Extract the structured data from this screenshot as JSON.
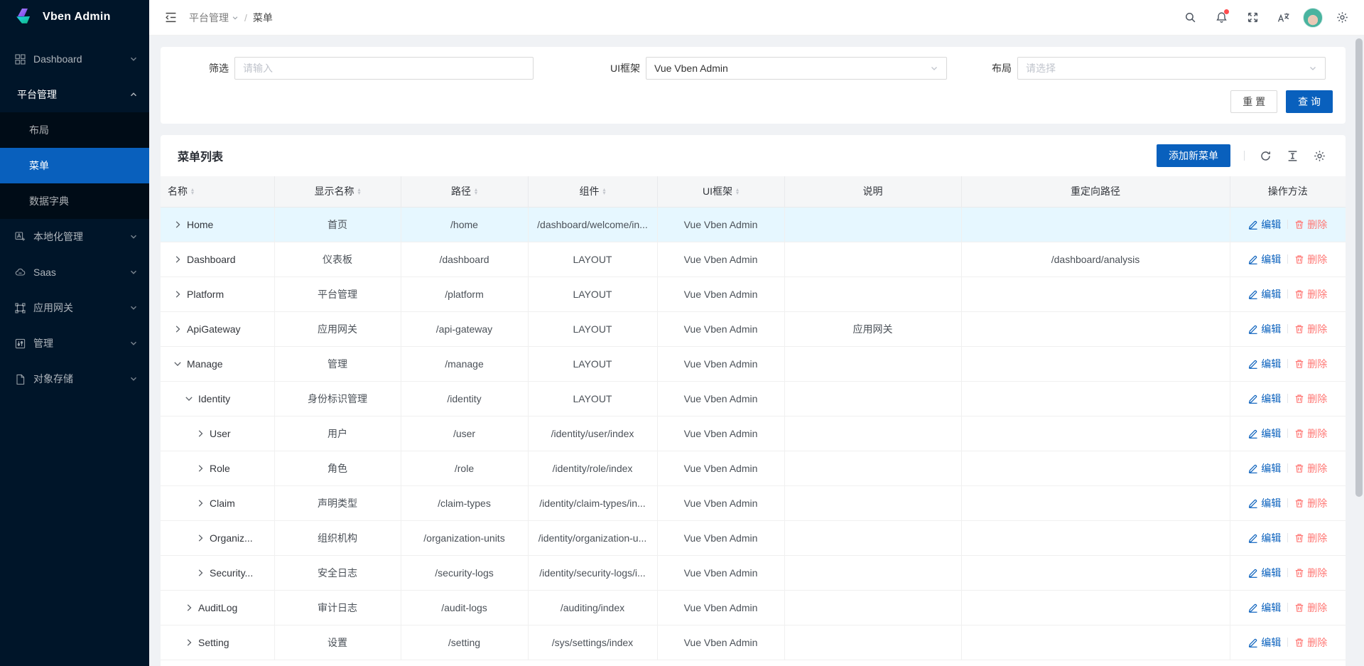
{
  "app": {
    "title": "Vben Admin"
  },
  "colors": {
    "primary": "#0960bd",
    "sidebar_bg": "#001529",
    "sidebar_submenu_bg": "#000c17",
    "selected_row_bg": "#e6f7ff",
    "danger": "#ff7875",
    "notification_dot": "#ff4d4f"
  },
  "sidebar": {
    "items": [
      {
        "label": "Dashboard",
        "icon": "dashboard-icon",
        "chevron": "down"
      },
      {
        "label": "平台管理",
        "chevron": "up",
        "expanded": true,
        "children": [
          {
            "label": "布局",
            "selected": false
          },
          {
            "label": "菜单",
            "selected": true
          },
          {
            "label": "数据字典",
            "selected": false
          }
        ]
      },
      {
        "label": "本地化管理",
        "icon": "localization-icon",
        "chevron": "down"
      },
      {
        "label": "Saas",
        "icon": "cloud-icon",
        "chevron": "down"
      },
      {
        "label": "应用网关",
        "icon": "gateway-icon",
        "chevron": "down"
      },
      {
        "label": "管理",
        "icon": "manage-icon",
        "chevron": "down"
      },
      {
        "label": "对象存储",
        "icon": "storage-icon",
        "chevron": "down"
      }
    ]
  },
  "topbar": {
    "breadcrumb": {
      "section": "平台管理",
      "separator": "/",
      "page": "菜单"
    },
    "notification_dot": true
  },
  "filter": {
    "filter_label": "筛选",
    "filter_placeholder": "请输入",
    "framework_label": "UI框架",
    "framework_value": "Vue Vben Admin",
    "layout_label": "布局",
    "layout_placeholder": "请选择",
    "reset_label": "重 置",
    "search_label": "查 询"
  },
  "menu_table": {
    "title": "菜单列表",
    "add_button_label": "添加新菜单",
    "ops": {
      "edit": "编辑",
      "delete": "删除"
    },
    "columns": [
      {
        "label": "名称",
        "sortable": true
      },
      {
        "label": "显示名称",
        "sortable": true
      },
      {
        "label": "路径",
        "sortable": true
      },
      {
        "label": "组件",
        "sortable": true
      },
      {
        "label": "UI框架",
        "sortable": true
      },
      {
        "label": "说明",
        "sortable": false
      },
      {
        "label": "重定向路径",
        "sortable": false
      },
      {
        "label": "操作方法",
        "sortable": false
      }
    ],
    "rows": [
      {
        "name": "Home",
        "indent": 0,
        "expanded": false,
        "display_name": "首页",
        "path": "/home",
        "component": "/dashboard/welcome/in...",
        "ui_framework": "Vue Vben Admin",
        "description": "",
        "redirect": "",
        "highlighted": true
      },
      {
        "name": "Dashboard",
        "indent": 0,
        "expanded": false,
        "display_name": "仪表板",
        "path": "/dashboard",
        "component": "LAYOUT",
        "ui_framework": "Vue Vben Admin",
        "description": "",
        "redirect": "/dashboard/analysis",
        "highlighted": false
      },
      {
        "name": "Platform",
        "indent": 0,
        "expanded": false,
        "display_name": "平台管理",
        "path": "/platform",
        "component": "LAYOUT",
        "ui_framework": "Vue Vben Admin",
        "description": "",
        "redirect": "",
        "highlighted": false
      },
      {
        "name": "ApiGateway",
        "indent": 0,
        "expanded": false,
        "display_name": "应用网关",
        "path": "/api-gateway",
        "component": "LAYOUT",
        "ui_framework": "Vue Vben Admin",
        "description": "应用网关",
        "redirect": "",
        "highlighted": false
      },
      {
        "name": "Manage",
        "indent": 0,
        "expanded": true,
        "display_name": "管理",
        "path": "/manage",
        "component": "LAYOUT",
        "ui_framework": "Vue Vben Admin",
        "description": "",
        "redirect": "",
        "highlighted": false
      },
      {
        "name": "Identity",
        "indent": 1,
        "expanded": true,
        "display_name": "身份标识管理",
        "path": "/identity",
        "component": "LAYOUT",
        "ui_framework": "Vue Vben Admin",
        "description": "",
        "redirect": "",
        "highlighted": false
      },
      {
        "name": "User",
        "indent": 2,
        "expanded": false,
        "display_name": "用户",
        "path": "/user",
        "component": "/identity/user/index",
        "ui_framework": "Vue Vben Admin",
        "description": "",
        "redirect": "",
        "highlighted": false
      },
      {
        "name": "Role",
        "indent": 2,
        "expanded": false,
        "display_name": "角色",
        "path": "/role",
        "component": "/identity/role/index",
        "ui_framework": "Vue Vben Admin",
        "description": "",
        "redirect": "",
        "highlighted": false
      },
      {
        "name": "Claim",
        "indent": 2,
        "expanded": false,
        "display_name": "声明类型",
        "path": "/claim-types",
        "component": "/identity/claim-types/in...",
        "ui_framework": "Vue Vben Admin",
        "description": "",
        "redirect": "",
        "highlighted": false
      },
      {
        "name": "Organiz...",
        "indent": 2,
        "expanded": false,
        "display_name": "组织机构",
        "path": "/organization-units",
        "component": "/identity/organization-u...",
        "ui_framework": "Vue Vben Admin",
        "description": "",
        "redirect": "",
        "highlighted": false
      },
      {
        "name": "Security...",
        "indent": 2,
        "expanded": false,
        "display_name": "安全日志",
        "path": "/security-logs",
        "component": "/identity/security-logs/i...",
        "ui_framework": "Vue Vben Admin",
        "description": "",
        "redirect": "",
        "highlighted": false
      },
      {
        "name": "AuditLog",
        "indent": 1,
        "expanded": false,
        "display_name": "审计日志",
        "path": "/audit-logs",
        "component": "/auditing/index",
        "ui_framework": "Vue Vben Admin",
        "description": "",
        "redirect": "",
        "highlighted": false
      },
      {
        "name": "Setting",
        "indent": 1,
        "expanded": false,
        "display_name": "设置",
        "path": "/setting",
        "component": "/sys/settings/index",
        "ui_framework": "Vue Vben Admin",
        "description": "",
        "redirect": "",
        "highlighted": false
      }
    ]
  }
}
